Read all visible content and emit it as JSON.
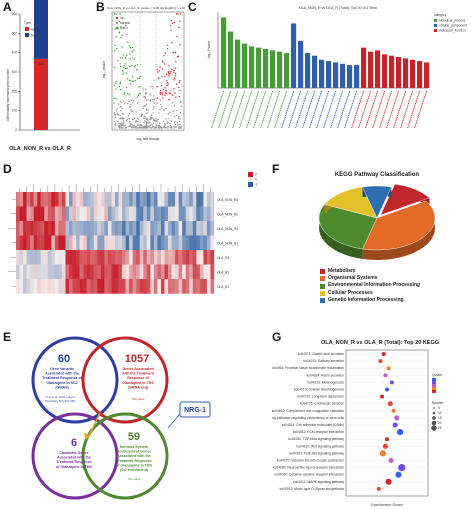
{
  "panels": {
    "a": "A",
    "b": "B",
    "c": "C",
    "d": "D",
    "e": "E",
    "f": "F",
    "g": "G"
  },
  "colors": {
    "up": "#d62728",
    "down": "#1f3f8f",
    "bio": "#4a9a3a",
    "cell": "#2f5fa8",
    "mol": "#c0262c",
    "heat_high": "#c81e2a",
    "heat_low": "#2a5fa0",
    "heat_mid": "#f4eaea"
  },
  "chart_data": [
    {
      "type": "bar",
      "title": "",
      "xlabel": "OLA_NON_R vs OLA_R",
      "ylabel": "Differentially expressed gene number",
      "legend_title": "Type",
      "categories": [
        "OLA_NON_R vs OLA_R"
      ],
      "series": [
        {
          "name": "Up",
          "values": [
            368
          ],
          "color": "#d62728"
        },
        {
          "name": "Down",
          "values": [
            567
          ],
          "color": "#1f3f8f"
        }
      ],
      "ylim": [
        0,
        600
      ],
      "yticks": [
        "0",
        "100",
        "200",
        "300",
        "400",
        "500",
        "600"
      ],
      "stack_total": 935,
      "data_labels": [
        "368",
        "567"
      ]
    },
    {
      "type": "scatter",
      "title": "OLA_NON_R vs OLA_R: pvalue < 0.05 && |log2FC| > 1.00",
      "xlabel": "log₂ fold change",
      "ylabel": "-log₁₀ pvalue",
      "legend": [
        "up",
        "normal",
        "down"
      ]
    },
    {
      "type": "bar",
      "title": "OLA_NON_R vs OLA_R (Total): Top 30 GO Term",
      "ylabel": "-log₁₀ Pvalue",
      "legend_title": "category",
      "legend": [
        "biological_process",
        "cellular_component",
        "molecular_function"
      ],
      "values": [
        10.5,
        8.4,
        7.2,
        6.6,
        6.2,
        6.0,
        5.8,
        5.6,
        5.4,
        5.2,
        9.6,
        7.0,
        5.2,
        4.8,
        4.2,
        4.0,
        3.8,
        3.6,
        3.4,
        3.4,
        6.0,
        5.4,
        5.6,
        5.0,
        4.8,
        4.6,
        4.4,
        4.2,
        4.0,
        3.8
      ],
      "categories_group": [
        "bio",
        "bio",
        "bio",
        "bio",
        "bio",
        "bio",
        "bio",
        "bio",
        "bio",
        "bio",
        "cell",
        "cell",
        "cell",
        "cell",
        "cell",
        "cell",
        "cell",
        "cell",
        "cell",
        "cell",
        "mol",
        "mol",
        "mol",
        "mol",
        "mol",
        "mol",
        "mol",
        "mol",
        "mol",
        "mol"
      ]
    },
    {
      "type": "heatmap",
      "rows": [
        "OLA_NON_R4",
        "OLA_NON_R2",
        "OLA_NON_R3",
        "OLA_NON_R1",
        "OLA_R3",
        "OLA_R2",
        "OLA_R1"
      ],
      "color_scale": [
        -2,
        0,
        2
      ]
    },
    {
      "type": "pie",
      "title": "KEGG Pathway Classification",
      "labels": [
        "Metabolism",
        "Organismal Systems",
        "Environmental Information Processing",
        "Cellular Processes",
        "Genetic Information Processing"
      ],
      "values": [
        12,
        38,
        28,
        14,
        8
      ],
      "colors": [
        "#c0262c",
        "#e06a26",
        "#4f8a2e",
        "#e3c12a",
        "#2e6fb0"
      ]
    },
    {
      "type": "scatter",
      "title": "OLA_NON_R vs OLA_R (Total): Top 20 KEGG",
      "xlabel": "Enrichment Score",
      "categories": [
        "ko04971: Gastric acid secretion",
        "ko04970: Salivary secretion",
        "ko04964: Proximal tubule bicarbonate reclamation",
        "ko04924: Renin secretion",
        "ko04916: Melanogenesis",
        "ko04913: Ovarian steroidogenesis",
        "ko04730: Long-term depression",
        "ko04725: Cholinergic synapse",
        "ko04610: Complement and coagulation cascades",
        "ko04550: Signaling pathways regulating pluripotency of stem cells",
        "ko04514: Cell adhesion molecules (CAMs)",
        "ko04512: ECM-receptor interaction",
        "ko04350: TGF-beta signaling pathway",
        "ko04310: Wnt signaling pathway",
        "ko04151: PI3K-Akt signaling pathway",
        "ko04270: Vascular smooth muscle contraction",
        "ko04080: Neuroactive ligand-receptor interaction",
        "ko04060: Cytokine-cytokine receptor interaction",
        "ko04010: MAPK signaling pathway",
        "ko00512: Mucin type O-Glycan biosynthesis"
      ],
      "x": [
        0.46,
        0.42,
        0.52,
        0.48,
        0.56,
        0.5,
        0.44,
        0.54,
        0.58,
        0.62,
        0.6,
        0.66,
        0.5,
        0.48,
        0.45,
        0.55,
        0.68,
        0.64,
        0.52,
        0.4
      ],
      "size": [
        2,
        2,
        2,
        2,
        2,
        2,
        2,
        3,
        2,
        3,
        3,
        4,
        2,
        3,
        4,
        3,
        5,
        4,
        4,
        2
      ],
      "legend_color_title": "Qvalue",
      "legend_size_title": "Number",
      "size_ticks": [
        "5",
        "10",
        "15",
        "20",
        "25"
      ]
    }
  ],
  "venn": {
    "left_count": "60",
    "left_title": "Gene Variants Associated with the Treatment Response of Olanzapine in SCZ (GWAS)",
    "left_ref": "Yu H et al. 2018, Lancet Psychiatry 5(4):327-338",
    "right_count": "1057",
    "right_title": "Genes Associated with the Treatment Response of Olanzapine in TRS (mRNA-seq)",
    "right_ref": "This paper",
    "bottom_left_count": "6",
    "bottom_left_title": "Candidate Genes Associated with the Treatment Response of Olanzapine in TRS",
    "bottom_right_count": "59",
    "bottom_right_title": "Nervous System Development Genes Associated with the Treatment Response of Olanzapine in TRS (GO enrichment)",
    "bottom_right_ref": "This paper",
    "gene_box": "NRG-1"
  }
}
